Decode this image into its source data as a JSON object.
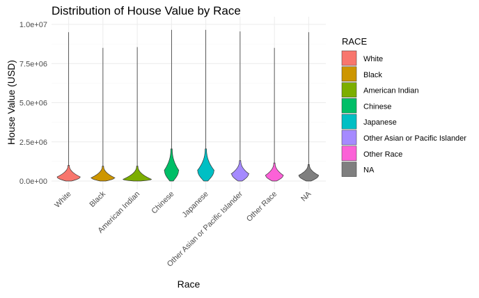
{
  "chart_data": {
    "type": "violin",
    "title": "Distribution of House Value by Race",
    "xlabel": "Race",
    "ylabel": "House Value (USD)",
    "ylim": [
      0,
      10000000
    ],
    "yticks": [
      0,
      2500000,
      5000000,
      7500000,
      10000000
    ],
    "ytick_labels": [
      "0.0e+00",
      "2.5e+06",
      "5.0e+06",
      "7.5e+06",
      "1.0e+07"
    ],
    "grid": true,
    "legend_title": "RACE",
    "legend_position": "right",
    "categories": [
      "White",
      "Black",
      "American Indian",
      "Chinese",
      "Japanese",
      "Other Asian or Pacific Islander",
      "Other Race",
      "NA"
    ],
    "series": [
      {
        "name": "White",
        "color": "#F8766D",
        "max": 9500000,
        "body_top": 1000000,
        "peak": 250000,
        "bottom": 0,
        "max_half_width": 0.82
      },
      {
        "name": "Black",
        "color": "#CD9600",
        "max": 8500000,
        "body_top": 950000,
        "peak": 200000,
        "bottom": 0,
        "max_half_width": 0.82
      },
      {
        "name": "American Indian",
        "color": "#7CAE00",
        "max": 8550000,
        "body_top": 950000,
        "peak": 100000,
        "bottom": 0,
        "max_half_width": 1.0
      },
      {
        "name": "Chinese",
        "color": "#00BE67",
        "max": 9650000,
        "body_top": 2050000,
        "peak": 650000,
        "bottom": 0,
        "max_half_width": 0.5
      },
      {
        "name": "Japanese",
        "color": "#00BFC4",
        "max": 9650000,
        "body_top": 2050000,
        "peak": 650000,
        "bottom": 0,
        "max_half_width": 0.58
      },
      {
        "name": "Other Asian or Pacific Islander",
        "color": "#00A9FF",
        "max": 9550000,
        "body_top": 1300000,
        "peak": 450000,
        "bottom": 0,
        "max_half_width": 0.6
      },
      {
        "name": "Other Race",
        "color": "#C77CFF",
        "max": 8500000,
        "body_top": 1150000,
        "peak": 350000,
        "bottom": 0,
        "max_half_width": 0.62
      },
      {
        "name": "NA",
        "color": "#FF61CC",
        "max": 9500000,
        "body_top": 1050000,
        "peak": 350000,
        "bottom": 0,
        "max_half_width": 0.7
      }
    ],
    "legend_colors": [
      "#F8766D",
      "#CD9600",
      "#7CAE00",
      "#00BE67",
      "#00BFC4",
      "#A58AFF",
      "#FB61D7",
      "#7F7F7F"
    ],
    "violin_colors": [
      "#F8766D",
      "#CD9600",
      "#7CAE00",
      "#00BE67",
      "#00BFC4",
      "#A58AFF",
      "#FB61D7",
      "#7F7F7F"
    ]
  }
}
